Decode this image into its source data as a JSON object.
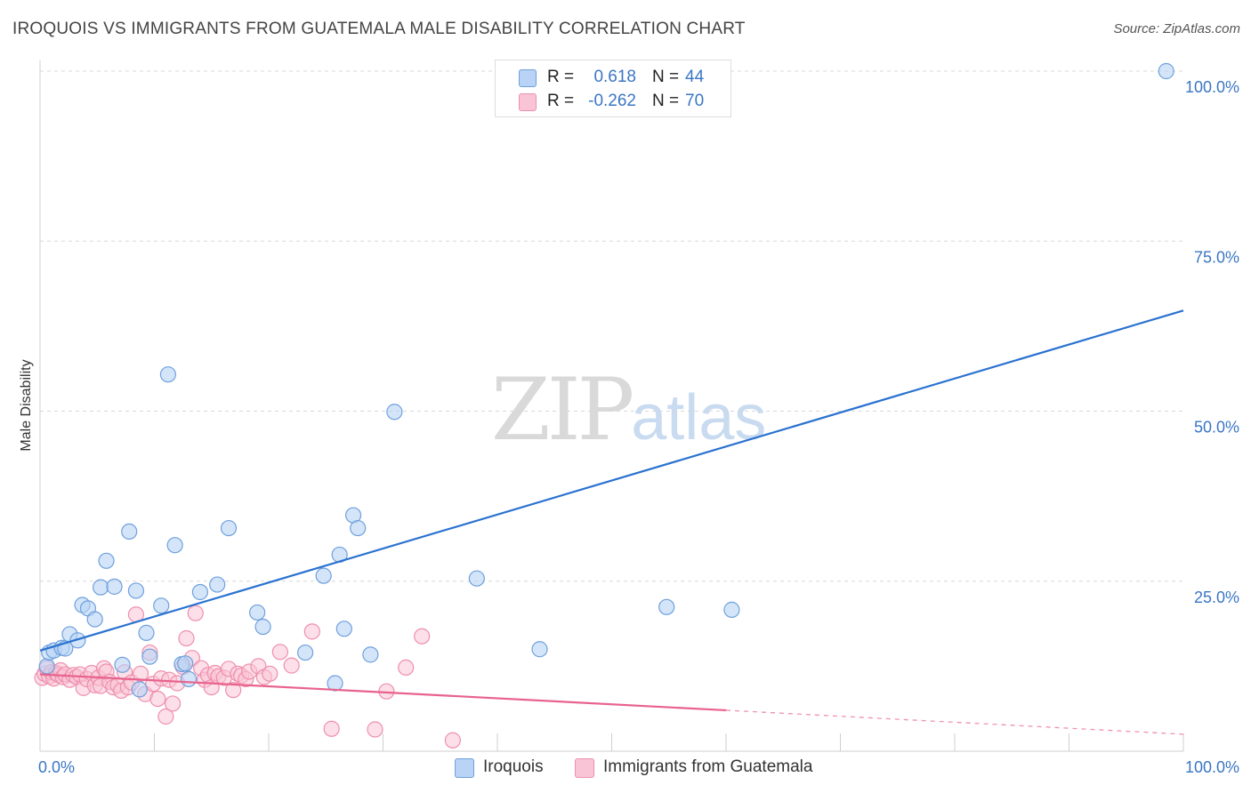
{
  "title": "IROQUOIS VS IMMIGRANTS FROM GUATEMALA MALE DISABILITY CORRELATION CHART",
  "source": "Source: ZipAtlas.com",
  "watermark": {
    "zip": "ZIP",
    "atlas": "atlas"
  },
  "legend_top": [
    {
      "r_label": "R =",
      "r_value": "0.618",
      "n_label": "N =",
      "n_value": "44"
    },
    {
      "r_label": "R =",
      "r_value": "-0.262",
      "n_label": "N =",
      "n_value": "70"
    }
  ],
  "legend_bottom": [
    "Iroquois",
    "Immigrants from Guatemala"
  ],
  "colors": {
    "iroquois_fill": "#b8d3f5",
    "iroquois_stroke": "#6fa0dc",
    "iroquois_line": "#2a72d0",
    "guatemala_fill": "#f9c5d6",
    "guatemala_stroke": "#ee8fae",
    "guatemala_line": "#e8628d",
    "grid": "#d8d8d8",
    "axis_text": "#3b76c4"
  },
  "chart_data": {
    "type": "scatter",
    "title": "IROQUOIS VS IMMIGRANTS FROM GUATEMALA MALE DISABILITY CORRELATION CHART",
    "xlabel": "",
    "ylabel": "Male Disability",
    "xlim": [
      0,
      100
    ],
    "ylim": [
      0,
      100
    ],
    "x_tick_labels": [
      "0.0%",
      "100.0%"
    ],
    "y_ticks": [
      25,
      50,
      75,
      100
    ],
    "y_tick_labels": [
      "25.0%",
      "50.0%",
      "75.0%",
      "100.0%"
    ],
    "grid": true,
    "series": [
      {
        "name": "Iroquois",
        "r": 0.618,
        "n": 44,
        "trend": {
          "x0": 0,
          "y0": 14.8,
          "x1": 100,
          "y1": 64.8,
          "dashed_from": null
        },
        "points": [
          [
            0.6,
            12.5
          ],
          [
            0.8,
            14.5
          ],
          [
            1.2,
            14.8
          ],
          [
            1.9,
            15.2
          ],
          [
            2.2,
            15.1
          ],
          [
            2.6,
            17.2
          ],
          [
            3.3,
            16.3
          ],
          [
            3.7,
            21.5
          ],
          [
            4.2,
            21.0
          ],
          [
            4.8,
            19.4
          ],
          [
            5.3,
            24.1
          ],
          [
            5.8,
            28.0
          ],
          [
            6.5,
            24.2
          ],
          [
            7.2,
            12.7
          ],
          [
            7.8,
            32.3
          ],
          [
            8.4,
            23.6
          ],
          [
            8.7,
            9.1
          ],
          [
            9.3,
            17.4
          ],
          [
            9.6,
            13.9
          ],
          [
            10.6,
            21.4
          ],
          [
            11.2,
            55.4
          ],
          [
            11.8,
            30.3
          ],
          [
            12.4,
            12.8
          ],
          [
            12.7,
            12.9
          ],
          [
            13.0,
            10.6
          ],
          [
            14.0,
            23.4
          ],
          [
            15.5,
            24.5
          ],
          [
            16.5,
            32.8
          ],
          [
            19.0,
            20.4
          ],
          [
            19.5,
            18.3
          ],
          [
            23.2,
            14.5
          ],
          [
            24.8,
            25.8
          ],
          [
            25.8,
            10.0
          ],
          [
            26.2,
            28.9
          ],
          [
            26.6,
            18.0
          ],
          [
            27.4,
            34.7
          ],
          [
            27.8,
            32.8
          ],
          [
            28.9,
            14.2
          ],
          [
            31.0,
            49.9
          ],
          [
            38.2,
            25.4
          ],
          [
            43.7,
            15.0
          ],
          [
            54.8,
            21.2
          ],
          [
            60.5,
            20.8
          ],
          [
            98.5,
            100.0
          ]
        ]
      },
      {
        "name": "Immigrants from Guatemala",
        "r": -0.262,
        "n": 70,
        "trend": {
          "x0": 0,
          "y0": 11.3,
          "x1": 100,
          "y1": 2.5,
          "dashed_from": 60.0
        },
        "points": [
          [
            0.2,
            10.8
          ],
          [
            0.4,
            11.4
          ],
          [
            0.6,
            12.2
          ],
          [
            0.8,
            11.0
          ],
          [
            1.0,
            11.6
          ],
          [
            1.2,
            10.7
          ],
          [
            1.4,
            11.5
          ],
          [
            1.6,
            11.2
          ],
          [
            1.8,
            11.9
          ],
          [
            2.0,
            10.9
          ],
          [
            2.2,
            11.3
          ],
          [
            2.6,
            10.5
          ],
          [
            2.9,
            11.2
          ],
          [
            3.2,
            10.9
          ],
          [
            3.5,
            11.3
          ],
          [
            3.8,
            9.3
          ],
          [
            4.1,
            10.6
          ],
          [
            4.5,
            11.5
          ],
          [
            4.8,
            9.7
          ],
          [
            5.1,
            10.8
          ],
          [
            5.3,
            9.6
          ],
          [
            5.6,
            12.2
          ],
          [
            5.8,
            11.7
          ],
          [
            6.1,
            10.2
          ],
          [
            6.4,
            9.4
          ],
          [
            6.8,
            9.7
          ],
          [
            7.1,
            8.9
          ],
          [
            7.4,
            11.6
          ],
          [
            7.7,
            9.4
          ],
          [
            8.0,
            10.1
          ],
          [
            8.4,
            20.1
          ],
          [
            8.8,
            11.4
          ],
          [
            9.2,
            8.4
          ],
          [
            9.6,
            14.5
          ],
          [
            9.9,
            9.9
          ],
          [
            10.3,
            7.7
          ],
          [
            10.6,
            10.7
          ],
          [
            11.0,
            5.1
          ],
          [
            11.3,
            10.5
          ],
          [
            11.6,
            7.0
          ],
          [
            12.0,
            10.0
          ],
          [
            12.5,
            12.4
          ],
          [
            12.8,
            16.6
          ],
          [
            13.3,
            13.7
          ],
          [
            13.6,
            20.3
          ],
          [
            14.1,
            12.2
          ],
          [
            14.4,
            10.5
          ],
          [
            14.7,
            11.2
          ],
          [
            15.0,
            9.4
          ],
          [
            15.3,
            11.5
          ],
          [
            15.6,
            11.0
          ],
          [
            16.1,
            10.8
          ],
          [
            16.5,
            12.1
          ],
          [
            16.9,
            9.0
          ],
          [
            17.3,
            11.4
          ],
          [
            17.6,
            11.1
          ],
          [
            18.0,
            10.6
          ],
          [
            18.3,
            11.7
          ],
          [
            19.1,
            12.5
          ],
          [
            19.6,
            10.9
          ],
          [
            20.1,
            11.4
          ],
          [
            21.0,
            14.6
          ],
          [
            22.0,
            12.6
          ],
          [
            23.8,
            17.6
          ],
          [
            25.5,
            3.3
          ],
          [
            29.3,
            3.2
          ],
          [
            30.3,
            8.8
          ],
          [
            32.0,
            12.3
          ],
          [
            33.4,
            16.9
          ],
          [
            36.1,
            1.6
          ]
        ]
      }
    ]
  }
}
